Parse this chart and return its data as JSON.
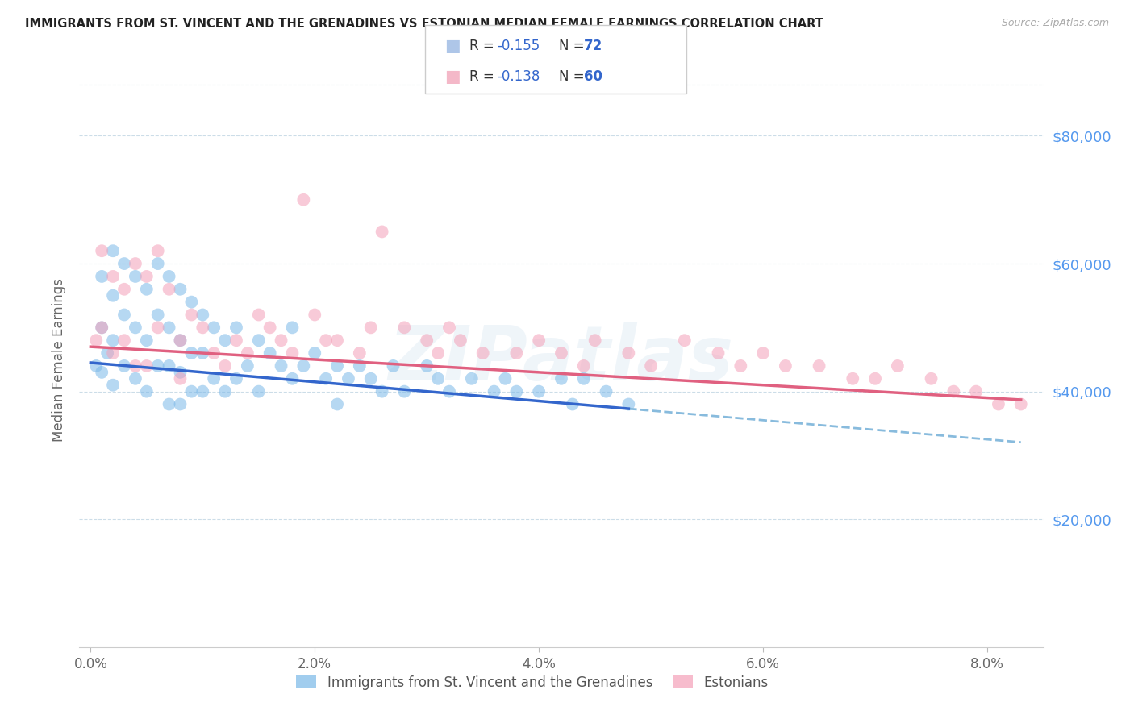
{
  "title": "IMMIGRANTS FROM ST. VINCENT AND THE GRENADINES VS ESTONIAN MEDIAN FEMALE EARNINGS CORRELATION CHART",
  "source": "Source: ZipAtlas.com",
  "ylabel": "Median Female Earnings",
  "xlabel_ticks": [
    "0.0%",
    "2.0%",
    "4.0%",
    "6.0%",
    "8.0%"
  ],
  "xlabel_vals": [
    0.0,
    0.02,
    0.04,
    0.06,
    0.08
  ],
  "ytick_labels": [
    "$20,000",
    "$40,000",
    "$60,000",
    "$80,000"
  ],
  "ytick_vals": [
    20000,
    40000,
    60000,
    80000
  ],
  "ylim": [
    0,
    90000
  ],
  "xlim": [
    -0.001,
    0.085
  ],
  "legend_color1": "#aec6e8",
  "legend_color2": "#f4b8c8",
  "scatter1_color": "#7ab8e8",
  "scatter2_color": "#f4a0b8",
  "line1_color": "#3366cc",
  "line2_color": "#e06080",
  "dashed_line_color": "#88bbdd",
  "watermark": "ZIPatlas",
  "background_color": "#ffffff",
  "legend_bottom_label1": "Immigrants from St. Vincent and the Grenadines",
  "legend_bottom_label2": "Estonians",
  "R1": -0.155,
  "N1": 72,
  "R2": -0.138,
  "N2": 60,
  "scatter1_x": [
    0.0005,
    0.001,
    0.001,
    0.001,
    0.0015,
    0.002,
    0.002,
    0.002,
    0.002,
    0.003,
    0.003,
    0.003,
    0.004,
    0.004,
    0.004,
    0.005,
    0.005,
    0.005,
    0.006,
    0.006,
    0.006,
    0.007,
    0.007,
    0.007,
    0.007,
    0.008,
    0.008,
    0.008,
    0.008,
    0.009,
    0.009,
    0.009,
    0.01,
    0.01,
    0.01,
    0.011,
    0.011,
    0.012,
    0.012,
    0.013,
    0.013,
    0.014,
    0.015,
    0.015,
    0.016,
    0.017,
    0.018,
    0.018,
    0.019,
    0.02,
    0.021,
    0.022,
    0.022,
    0.023,
    0.024,
    0.025,
    0.026,
    0.027,
    0.028,
    0.03,
    0.031,
    0.032,
    0.034,
    0.036,
    0.037,
    0.038,
    0.04,
    0.042,
    0.043,
    0.044,
    0.046,
    0.048
  ],
  "scatter1_y": [
    44000,
    58000,
    50000,
    43000,
    46000,
    62000,
    55000,
    48000,
    41000,
    60000,
    52000,
    44000,
    58000,
    50000,
    42000,
    56000,
    48000,
    40000,
    60000,
    52000,
    44000,
    58000,
    50000,
    44000,
    38000,
    56000,
    48000,
    43000,
    38000,
    54000,
    46000,
    40000,
    52000,
    46000,
    40000,
    50000,
    42000,
    48000,
    40000,
    50000,
    42000,
    44000,
    48000,
    40000,
    46000,
    44000,
    50000,
    42000,
    44000,
    46000,
    42000,
    44000,
    38000,
    42000,
    44000,
    42000,
    40000,
    44000,
    40000,
    44000,
    42000,
    40000,
    42000,
    40000,
    42000,
    40000,
    40000,
    42000,
    38000,
    42000,
    40000,
    38000
  ],
  "scatter2_x": [
    0.0005,
    0.001,
    0.001,
    0.002,
    0.002,
    0.003,
    0.003,
    0.004,
    0.004,
    0.005,
    0.005,
    0.006,
    0.006,
    0.007,
    0.008,
    0.008,
    0.009,
    0.01,
    0.011,
    0.012,
    0.013,
    0.014,
    0.015,
    0.016,
    0.017,
    0.018,
    0.019,
    0.02,
    0.021,
    0.022,
    0.024,
    0.025,
    0.026,
    0.028,
    0.03,
    0.031,
    0.032,
    0.033,
    0.035,
    0.038,
    0.04,
    0.042,
    0.044,
    0.045,
    0.048,
    0.05,
    0.053,
    0.056,
    0.058,
    0.06,
    0.062,
    0.065,
    0.068,
    0.07,
    0.072,
    0.075,
    0.077,
    0.079,
    0.081,
    0.083
  ],
  "scatter2_y": [
    48000,
    62000,
    50000,
    58000,
    46000,
    56000,
    48000,
    60000,
    44000,
    58000,
    44000,
    62000,
    50000,
    56000,
    48000,
    42000,
    52000,
    50000,
    46000,
    44000,
    48000,
    46000,
    52000,
    50000,
    48000,
    46000,
    70000,
    52000,
    48000,
    48000,
    46000,
    50000,
    65000,
    50000,
    48000,
    46000,
    50000,
    48000,
    46000,
    46000,
    48000,
    46000,
    44000,
    48000,
    46000,
    44000,
    48000,
    46000,
    44000,
    46000,
    44000,
    44000,
    42000,
    42000,
    44000,
    42000,
    40000,
    40000,
    38000,
    38000
  ]
}
